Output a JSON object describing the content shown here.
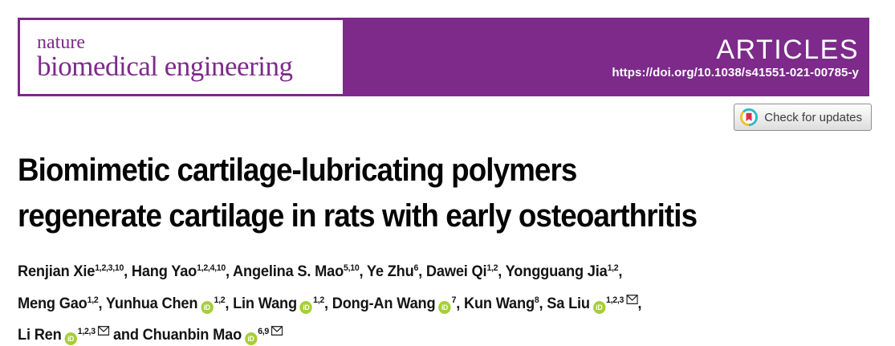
{
  "colors": {
    "purple": "#7D2A8B",
    "orcid_green": "#A6CE39",
    "crossmark_red": "#D8304A",
    "crossmark_teal": "#2CB9C8",
    "crossmark_yellow": "#F6C32A",
    "title_text": "#050505",
    "page_bg": "#ffffff"
  },
  "masthead": {
    "brand_line1": "nature",
    "brand_line2": "biomedical engineering",
    "article_type": "ARTICLES",
    "doi": "https://doi.org/10.1038/s41551-021-00785-y"
  },
  "check_for_updates": {
    "label": "Check for updates",
    "icon": "crossmark-icon"
  },
  "title": {
    "lines": [
      "Biomimetic cartilage-lubricating polymers",
      "regenerate cartilage in rats with early osteoarthritis"
    ]
  },
  "authors": {
    "lines": [
      [
        {
          "name": "Renjian Xie",
          "sup": "1,2,3,10",
          "orcid": false,
          "email": false,
          "sep": ", "
        },
        {
          "name": "Hang Yao",
          "sup": "1,2,4,10",
          "orcid": false,
          "email": false,
          "sep": ", "
        },
        {
          "name": "Angelina S. Mao",
          "sup": "5,10",
          "orcid": false,
          "email": false,
          "sep": ", "
        },
        {
          "name": "Ye Zhu",
          "sup": "6",
          "orcid": false,
          "email": false,
          "sep": ", "
        },
        {
          "name": "Dawei Qi",
          "sup": "1,2",
          "orcid": false,
          "email": false,
          "sep": ", "
        },
        {
          "name": "Yongguang Jia",
          "sup": "1,2",
          "orcid": false,
          "email": false,
          "sep": ","
        }
      ],
      [
        {
          "name": "Meng Gao",
          "sup": "1,2",
          "orcid": false,
          "email": false,
          "sep": ", "
        },
        {
          "name": "Yunhua Chen",
          "sup": "1,2",
          "orcid": true,
          "email": false,
          "sep": ", "
        },
        {
          "name": "Lin Wang",
          "sup": "1,2",
          "orcid": true,
          "email": false,
          "sep": ", "
        },
        {
          "name": "Dong-An Wang",
          "sup": "7",
          "orcid": true,
          "email": false,
          "sep": ", "
        },
        {
          "name": "Kun Wang",
          "sup": "8",
          "orcid": false,
          "email": false,
          "sep": ", "
        },
        {
          "name": "Sa Liu",
          "sup": "1,2,3",
          "orcid": true,
          "email": true,
          "sep": ","
        }
      ],
      [
        {
          "name": "Li Ren",
          "sup": "1,2,3",
          "orcid": true,
          "email": true,
          "sep": " and "
        },
        {
          "name": "Chuanbin Mao",
          "sup": "6,9",
          "orcid": true,
          "email": true,
          "sep": ""
        }
      ]
    ],
    "orcid_icon_text": "iD"
  }
}
